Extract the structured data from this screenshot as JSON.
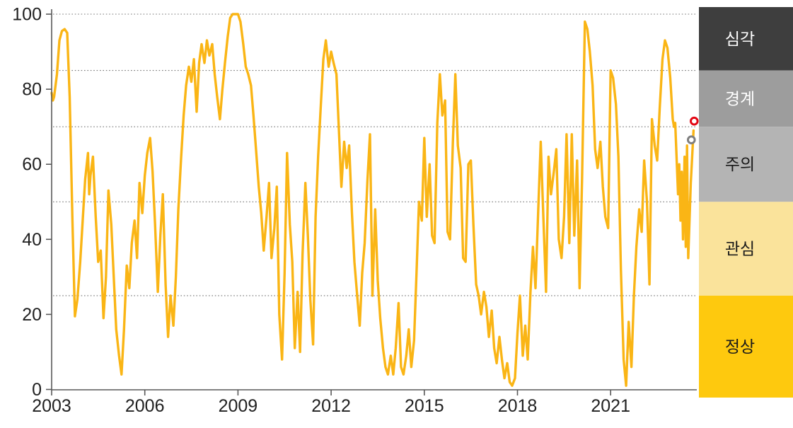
{
  "chart_data": {
    "type": "line",
    "title": "",
    "xlabel": "",
    "ylabel": "",
    "xlim": [
      2003,
      2023.9
    ],
    "ylim": [
      0,
      100
    ],
    "y_ticks": [
      0,
      20,
      40,
      60,
      80,
      100
    ],
    "x_ticks": [
      2003,
      2006,
      2009,
      2012,
      2015,
      2018,
      2021
    ],
    "gridlines_y": [
      25,
      50,
      70,
      85,
      100
    ],
    "grid_on": true,
    "legend_position": "right-band",
    "colors": {
      "line": "#FAB515",
      "axis": "#595959",
      "grid": "#757575",
      "label": "#212121",
      "marker_latest": "#E30613",
      "marker_previous": "#7F7F7F"
    },
    "series": [
      {
        "name": "risk-index",
        "color": "#FAB515",
        "points": [
          [
            2003.0,
            79
          ],
          [
            2003.04,
            77
          ],
          [
            2003.08,
            78
          ],
          [
            2003.17,
            84
          ],
          [
            2003.25,
            93
          ],
          [
            2003.33,
            95.5
          ],
          [
            2003.42,
            96
          ],
          [
            2003.5,
            95
          ],
          [
            2003.58,
            78
          ],
          [
            2003.67,
            45
          ],
          [
            2003.75,
            19.5
          ],
          [
            2003.83,
            24
          ],
          [
            2003.92,
            34
          ],
          [
            2004.0,
            45
          ],
          [
            2004.08,
            56
          ],
          [
            2004.17,
            63
          ],
          [
            2004.21,
            52
          ],
          [
            2004.25,
            57
          ],
          [
            2004.33,
            62
          ],
          [
            2004.42,
            46
          ],
          [
            2004.5,
            34
          ],
          [
            2004.58,
            37
          ],
          [
            2004.67,
            19
          ],
          [
            2004.75,
            30
          ],
          [
            2004.83,
            53
          ],
          [
            2004.92,
            44
          ],
          [
            2005.0,
            30
          ],
          [
            2005.08,
            16
          ],
          [
            2005.17,
            9
          ],
          [
            2005.25,
            4
          ],
          [
            2005.33,
            16
          ],
          [
            2005.42,
            33
          ],
          [
            2005.5,
            27
          ],
          [
            2005.58,
            39
          ],
          [
            2005.67,
            45
          ],
          [
            2005.75,
            35
          ],
          [
            2005.83,
            55
          ],
          [
            2005.92,
            47
          ],
          [
            2006.0,
            57
          ],
          [
            2006.08,
            63
          ],
          [
            2006.17,
            67
          ],
          [
            2006.25,
            58
          ],
          [
            2006.33,
            44
          ],
          [
            2006.42,
            26
          ],
          [
            2006.5,
            41
          ],
          [
            2006.58,
            52
          ],
          [
            2006.67,
            28
          ],
          [
            2006.75,
            14
          ],
          [
            2006.83,
            25
          ],
          [
            2006.92,
            17
          ],
          [
            2007.0,
            30
          ],
          [
            2007.08,
            48
          ],
          [
            2007.17,
            62
          ],
          [
            2007.25,
            73
          ],
          [
            2007.33,
            81
          ],
          [
            2007.42,
            86
          ],
          [
            2007.5,
            82
          ],
          [
            2007.58,
            88
          ],
          [
            2007.67,
            74
          ],
          [
            2007.75,
            87
          ],
          [
            2007.83,
            92
          ],
          [
            2007.92,
            87
          ],
          [
            2008.0,
            93
          ],
          [
            2008.08,
            89
          ],
          [
            2008.17,
            92
          ],
          [
            2008.25,
            84
          ],
          [
            2008.33,
            78
          ],
          [
            2008.42,
            72
          ],
          [
            2008.5,
            80
          ],
          [
            2008.58,
            87
          ],
          [
            2008.67,
            94
          ],
          [
            2008.75,
            99
          ],
          [
            2008.83,
            100
          ],
          [
            2008.92,
            100
          ],
          [
            2009.0,
            100
          ],
          [
            2009.08,
            98
          ],
          [
            2009.17,
            92
          ],
          [
            2009.25,
            86
          ],
          [
            2009.33,
            84
          ],
          [
            2009.42,
            81
          ],
          [
            2009.5,
            73
          ],
          [
            2009.58,
            64
          ],
          [
            2009.67,
            54
          ],
          [
            2009.75,
            47
          ],
          [
            2009.83,
            37
          ],
          [
            2009.92,
            46
          ],
          [
            2010.0,
            55
          ],
          [
            2010.08,
            35
          ],
          [
            2010.17,
            43
          ],
          [
            2010.25,
            54
          ],
          [
            2010.33,
            20
          ],
          [
            2010.42,
            8
          ],
          [
            2010.5,
            31
          ],
          [
            2010.58,
            63
          ],
          [
            2010.67,
            44
          ],
          [
            2010.75,
            34
          ],
          [
            2010.83,
            11
          ],
          [
            2010.92,
            26
          ],
          [
            2011.0,
            10
          ],
          [
            2011.08,
            36
          ],
          [
            2011.17,
            55
          ],
          [
            2011.25,
            41
          ],
          [
            2011.33,
            24
          ],
          [
            2011.42,
            12
          ],
          [
            2011.5,
            46
          ],
          [
            2011.58,
            62
          ],
          [
            2011.67,
            76
          ],
          [
            2011.75,
            88
          ],
          [
            2011.83,
            93
          ],
          [
            2011.92,
            86
          ],
          [
            2012.0,
            90
          ],
          [
            2012.08,
            87
          ],
          [
            2012.17,
            84
          ],
          [
            2012.25,
            69
          ],
          [
            2012.33,
            54
          ],
          [
            2012.42,
            66
          ],
          [
            2012.5,
            59
          ],
          [
            2012.58,
            65
          ],
          [
            2012.67,
            47
          ],
          [
            2012.75,
            34
          ],
          [
            2012.83,
            26
          ],
          [
            2012.92,
            17
          ],
          [
            2013.0,
            31
          ],
          [
            2013.08,
            39
          ],
          [
            2013.17,
            56
          ],
          [
            2013.25,
            68
          ],
          [
            2013.33,
            25
          ],
          [
            2013.42,
            48
          ],
          [
            2013.5,
            29
          ],
          [
            2013.58,
            19
          ],
          [
            2013.67,
            11
          ],
          [
            2013.75,
            6
          ],
          [
            2013.83,
            4
          ],
          [
            2013.92,
            9
          ],
          [
            2014.0,
            4
          ],
          [
            2014.08,
            11
          ],
          [
            2014.17,
            23
          ],
          [
            2014.25,
            6
          ],
          [
            2014.33,
            4
          ],
          [
            2014.42,
            9
          ],
          [
            2014.5,
            16
          ],
          [
            2014.58,
            6
          ],
          [
            2014.67,
            13
          ],
          [
            2014.75,
            31
          ],
          [
            2014.83,
            50
          ],
          [
            2014.92,
            45
          ],
          [
            2015.0,
            67
          ],
          [
            2015.08,
            46
          ],
          [
            2015.17,
            60
          ],
          [
            2015.25,
            41
          ],
          [
            2015.33,
            39
          ],
          [
            2015.42,
            71
          ],
          [
            2015.5,
            84
          ],
          [
            2015.58,
            73
          ],
          [
            2015.67,
            77
          ],
          [
            2015.75,
            42
          ],
          [
            2015.83,
            40
          ],
          [
            2015.92,
            66
          ],
          [
            2016.0,
            84
          ],
          [
            2016.08,
            65
          ],
          [
            2016.17,
            59
          ],
          [
            2016.25,
            35
          ],
          [
            2016.33,
            34
          ],
          [
            2016.42,
            60
          ],
          [
            2016.5,
            61
          ],
          [
            2016.58,
            44
          ],
          [
            2016.67,
            28
          ],
          [
            2016.75,
            25
          ],
          [
            2016.83,
            20
          ],
          [
            2016.92,
            26
          ],
          [
            2017.0,
            22
          ],
          [
            2017.08,
            14
          ],
          [
            2017.17,
            21
          ],
          [
            2017.25,
            11
          ],
          [
            2017.33,
            7
          ],
          [
            2017.42,
            14
          ],
          [
            2017.5,
            8
          ],
          [
            2017.58,
            3
          ],
          [
            2017.67,
            7
          ],
          [
            2017.75,
            2
          ],
          [
            2017.83,
            1
          ],
          [
            2017.92,
            3
          ],
          [
            2018.0,
            15
          ],
          [
            2018.08,
            25
          ],
          [
            2018.17,
            9
          ],
          [
            2018.25,
            17
          ],
          [
            2018.33,
            8
          ],
          [
            2018.42,
            26
          ],
          [
            2018.5,
            38
          ],
          [
            2018.58,
            27
          ],
          [
            2018.67,
            48
          ],
          [
            2018.75,
            66
          ],
          [
            2018.83,
            47
          ],
          [
            2018.92,
            26
          ],
          [
            2019.0,
            62
          ],
          [
            2019.08,
            52
          ],
          [
            2019.17,
            58
          ],
          [
            2019.25,
            64
          ],
          [
            2019.33,
            40
          ],
          [
            2019.42,
            35
          ],
          [
            2019.5,
            46
          ],
          [
            2019.58,
            68
          ],
          [
            2019.67,
            39
          ],
          [
            2019.75,
            68
          ],
          [
            2019.83,
            41
          ],
          [
            2019.92,
            61
          ],
          [
            2020.0,
            27
          ],
          [
            2020.08,
            56
          ],
          [
            2020.17,
            98
          ],
          [
            2020.25,
            96
          ],
          [
            2020.33,
            90
          ],
          [
            2020.42,
            81
          ],
          [
            2020.5,
            64
          ],
          [
            2020.58,
            59
          ],
          [
            2020.67,
            66
          ],
          [
            2020.75,
            54
          ],
          [
            2020.83,
            46
          ],
          [
            2020.92,
            43
          ],
          [
            2021.0,
            85
          ],
          [
            2021.08,
            83
          ],
          [
            2021.17,
            76
          ],
          [
            2021.25,
            62
          ],
          [
            2021.33,
            32
          ],
          [
            2021.42,
            8
          ],
          [
            2021.5,
            1
          ],
          [
            2021.58,
            18
          ],
          [
            2021.67,
            6
          ],
          [
            2021.75,
            25
          ],
          [
            2021.83,
            38
          ],
          [
            2021.92,
            48
          ],
          [
            2022.0,
            42
          ],
          [
            2022.08,
            61
          ],
          [
            2022.17,
            50
          ],
          [
            2022.25,
            28
          ],
          [
            2022.33,
            72
          ],
          [
            2022.42,
            65
          ],
          [
            2022.5,
            61
          ],
          [
            2022.58,
            75
          ],
          [
            2022.67,
            88
          ],
          [
            2022.75,
            93
          ],
          [
            2022.83,
            91
          ],
          [
            2022.92,
            83
          ],
          [
            2023.0,
            72
          ],
          [
            2023.04,
            70
          ],
          [
            2023.08,
            71
          ],
          [
            2023.17,
            52
          ],
          [
            2023.21,
            60
          ],
          [
            2023.25,
            45
          ],
          [
            2023.29,
            58
          ],
          [
            2023.33,
            40
          ],
          [
            2023.38,
            62
          ],
          [
            2023.42,
            38
          ],
          [
            2023.46,
            65
          ],
          [
            2023.5,
            35
          ],
          [
            2023.58,
            55
          ],
          [
            2023.67,
            69
          ]
        ]
      }
    ],
    "markers": [
      {
        "name": "previous-value",
        "x": 2023.6,
        "y": 66.5,
        "color": "#7F7F7F"
      },
      {
        "name": "latest-value",
        "x": 2023.69,
        "y": 71.5,
        "color": "#E30613"
      }
    ],
    "legend_bands": [
      {
        "key": "severe",
        "label": "심각",
        "range": [
          85,
          100
        ],
        "color": "#3E3E3E",
        "text_color": "#FFFFFF"
      },
      {
        "key": "alert",
        "label": "경계",
        "range": [
          70,
          85
        ],
        "color": "#9D9D9D",
        "text_color": "#FFFFFF"
      },
      {
        "key": "caution",
        "label": "주의",
        "range": [
          50,
          70
        ],
        "color": "#B4B4B4",
        "text_color": "#1A1A1A"
      },
      {
        "key": "interest",
        "label": "관심",
        "range": [
          25,
          50
        ],
        "color": "#FAE39B",
        "text_color": "#1A1A1A"
      },
      {
        "key": "normal",
        "label": "정상",
        "range": [
          0,
          25
        ],
        "color": "#FEC90E",
        "text_color": "#1A1A1A"
      }
    ]
  }
}
